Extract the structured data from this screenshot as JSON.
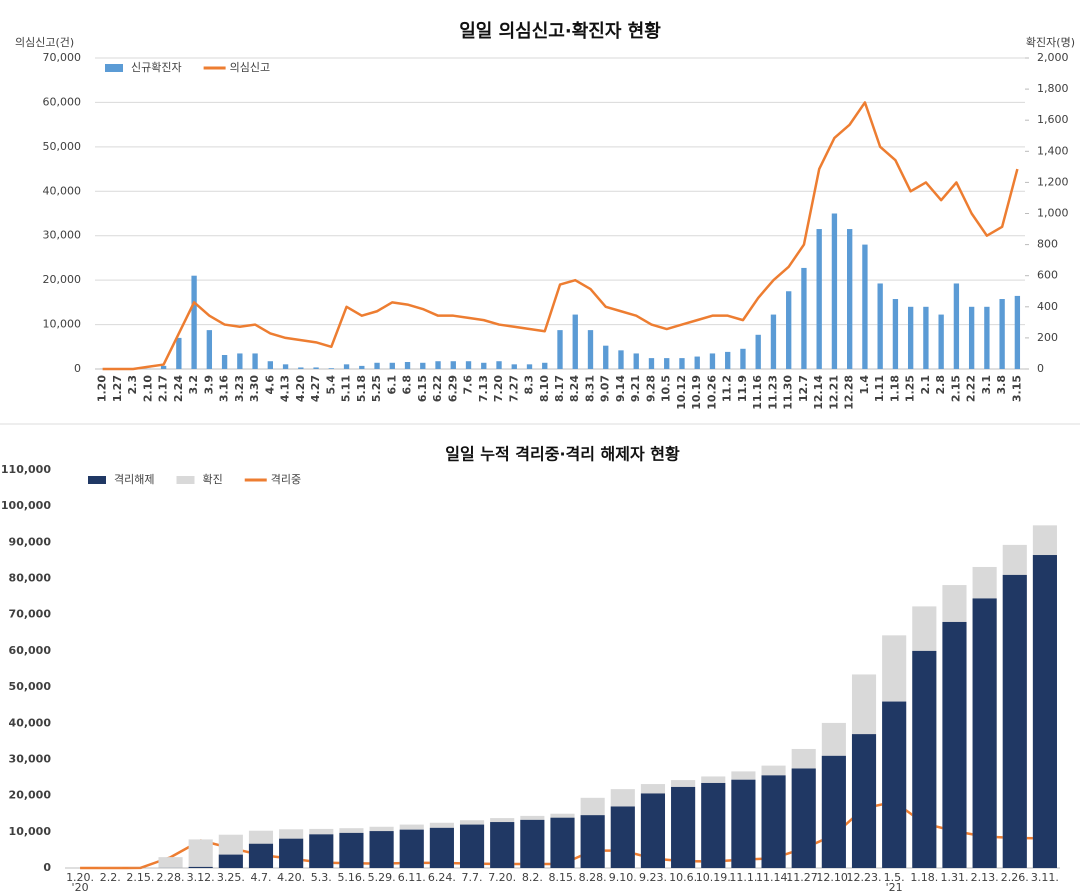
{
  "chart_data": [
    {
      "type": "combo",
      "title": "일일 의심신고·확진자 현황",
      "y_label": "의심신고(건)",
      "y2_label": "확진자(명)",
      "grid": true,
      "categories": [
        "1.20",
        "1.27",
        "2.3",
        "2.10",
        "2.17",
        "2.24",
        "3.2",
        "3.9",
        "3.16",
        "3.23",
        "3.30",
        "4.6",
        "4.13",
        "4.20",
        "4.27",
        "5.4",
        "5.11",
        "5.18",
        "5.25",
        "6.1",
        "6.8",
        "6.15",
        "6.22",
        "6.29",
        "7.6",
        "7.13",
        "7.20",
        "7.27",
        "8.3",
        "8.10",
        "8.17",
        "8.24",
        "8.31",
        "9.07",
        "9.14",
        "9.21",
        "9.28",
        "10.5",
        "10.12",
        "10.19",
        "10.26",
        "11.2",
        "11.9",
        "11.16",
        "11.23",
        "11.30",
        "12.7",
        "12.14",
        "12.21",
        "12.28",
        "1.4",
        "1.11",
        "1.18",
        "1.25",
        "2.1",
        "2.8",
        "2.15",
        "2.22",
        "3.1",
        "3.8",
        "3.15"
      ],
      "series": [
        {
          "name": "신규확진자",
          "mark": "bar",
          "axis": "y2",
          "color": "#5b9bd5",
          "values": [
            1,
            3,
            2,
            1,
            20,
            200,
            600,
            250,
            90,
            100,
            100,
            50,
            30,
            10,
            10,
            5,
            30,
            20,
            40,
            40,
            45,
            40,
            50,
            50,
            50,
            40,
            50,
            30,
            30,
            40,
            250,
            350,
            250,
            150,
            120,
            100,
            70,
            70,
            70,
            80,
            100,
            110,
            130,
            220,
            350,
            500,
            650,
            900,
            1000,
            900,
            800,
            550,
            450,
            400,
            400,
            350,
            550,
            400,
            400,
            450,
            470
          ]
        },
        {
          "name": "의심신고",
          "mark": "line",
          "color": "#ed7d31",
          "values": [
            0,
            0,
            0,
            500,
            1000,
            8000,
            15000,
            12000,
            10000,
            9500,
            10000,
            8000,
            7000,
            6500,
            6000,
            5000,
            14000,
            12000,
            13000,
            15000,
            14500,
            13500,
            12000,
            12000,
            11500,
            11000,
            10000,
            9500,
            9000,
            8500,
            19000,
            20000,
            18000,
            14000,
            13000,
            12000,
            10000,
            9000,
            10000,
            11000,
            12000,
            12000,
            11000,
            16000,
            20000,
            23000,
            28000,
            45000,
            52000,
            55000,
            60000,
            50000,
            47000,
            40000,
            42000,
            38000,
            42000,
            35000,
            30000,
            32000,
            45000
          ]
        }
      ],
      "ylim": [
        0,
        70000
      ],
      "yticks": [
        0,
        {
          "value": 10000,
          "label": "10,000"
        },
        {
          "value": 20000,
          "label": "20,000"
        },
        {
          "value": 30000,
          "label": "30,000"
        },
        {
          "value": 40000,
          "label": "40,000"
        },
        {
          "value": 50000,
          "label": "50,000"
        },
        {
          "value": 60000,
          "label": "60,000"
        },
        {
          "value": 70000,
          "label": "70,000"
        }
      ],
      "y2lim": [
        0,
        2000
      ],
      "y2ticks": [
        0,
        200,
        400,
        600,
        800,
        {
          "value": 1000,
          "label": "1,000"
        },
        {
          "value": 1200,
          "label": "1,200"
        },
        {
          "value": 1400,
          "label": "1,400"
        },
        {
          "value": 1600,
          "label": "1,600"
        },
        {
          "value": 1800,
          "label": "1,800"
        },
        {
          "value": 2000,
          "label": "2,000"
        }
      ]
    },
    {
      "type": "combo",
      "title": "일일 누적 격리중·격리 해제자 현황",
      "grid": false,
      "bar_overlap": true,
      "categories": [
        "1.20.",
        "2.2.",
        "2.15.",
        "2.28.",
        "3.12.",
        "3.25.",
        "4.7.",
        "4.20.",
        "5.3.",
        "5.16.",
        "5.29.",
        "6.11.",
        "6.24.",
        "7.7.",
        "7.20.",
        "8.2.",
        "8.15.",
        "8.28.",
        "9.10.",
        "9.23.",
        "10.6.",
        "10.19.",
        "11.1.",
        "11.14.",
        "11.27.",
        "12.10.",
        "12.23.",
        "1.5.",
        "1.18.",
        "1.31.",
        "2.13.",
        "2.26.",
        "3.11."
      ],
      "year_labels": [
        {
          "category": 0,
          "label": "'20"
        },
        {
          "category": 27,
          "label": "'21"
        }
      ],
      "series": [
        {
          "name": "격리해제",
          "mark": "bar",
          "color": "#203864",
          "values": [
            0,
            1,
            10,
            30,
            300,
            3700,
            6700,
            8100,
            9300,
            9700,
            10200,
            10600,
            11100,
            12000,
            12700,
            13300,
            13900,
            14600,
            17000,
            20600,
            22400,
            23500,
            24400,
            25600,
            27500,
            31000,
            37000,
            46000,
            60000,
            68000,
            74500,
            81000,
            86500
          ]
        },
        {
          "name": "확진",
          "mark": "bar",
          "color": "#d9d9d9",
          "values": [
            1,
            15,
            28,
            3000,
            7900,
            9200,
            10300,
            10700,
            10800,
            11000,
            11400,
            12000,
            12500,
            13200,
            13800,
            14400,
            15000,
            19400,
            21800,
            23200,
            24300,
            25300,
            26700,
            28300,
            32900,
            40100,
            53500,
            64300,
            72300,
            78200,
            83200,
            89300,
            94700
          ]
        },
        {
          "name": "격리중",
          "mark": "line",
          "color": "#ed7d31",
          "values": [
            0,
            14,
            18,
            2970,
            7600,
            5500,
            3600,
            2600,
            1500,
            1300,
            1200,
            1400,
            1400,
            1200,
            1100,
            1100,
            1100,
            4800,
            4800,
            2600,
            1900,
            1800,
            2300,
            2700,
            5400,
            9100,
            16500,
            18300,
            12300,
            10200,
            8700,
            8300,
            8200
          ]
        }
      ],
      "ylim": [
        0,
        110000
      ],
      "yticks": [
        0,
        {
          "value": 10000,
          "label": "10,000"
        },
        {
          "value": 20000,
          "label": "20,000"
        },
        {
          "value": 30000,
          "label": "30,000"
        },
        {
          "value": 40000,
          "label": "40,000"
        },
        {
          "value": 50000,
          "label": "50,000"
        },
        {
          "value": 60000,
          "label": "60,000"
        },
        {
          "value": 70000,
          "label": "70,000"
        },
        {
          "value": 80000,
          "label": "80,000"
        },
        {
          "value": 90000,
          "label": "90,000"
        },
        {
          "value": 100000,
          "label": "100,000"
        },
        {
          "value": 110000,
          "label": "110,000"
        }
      ]
    }
  ]
}
